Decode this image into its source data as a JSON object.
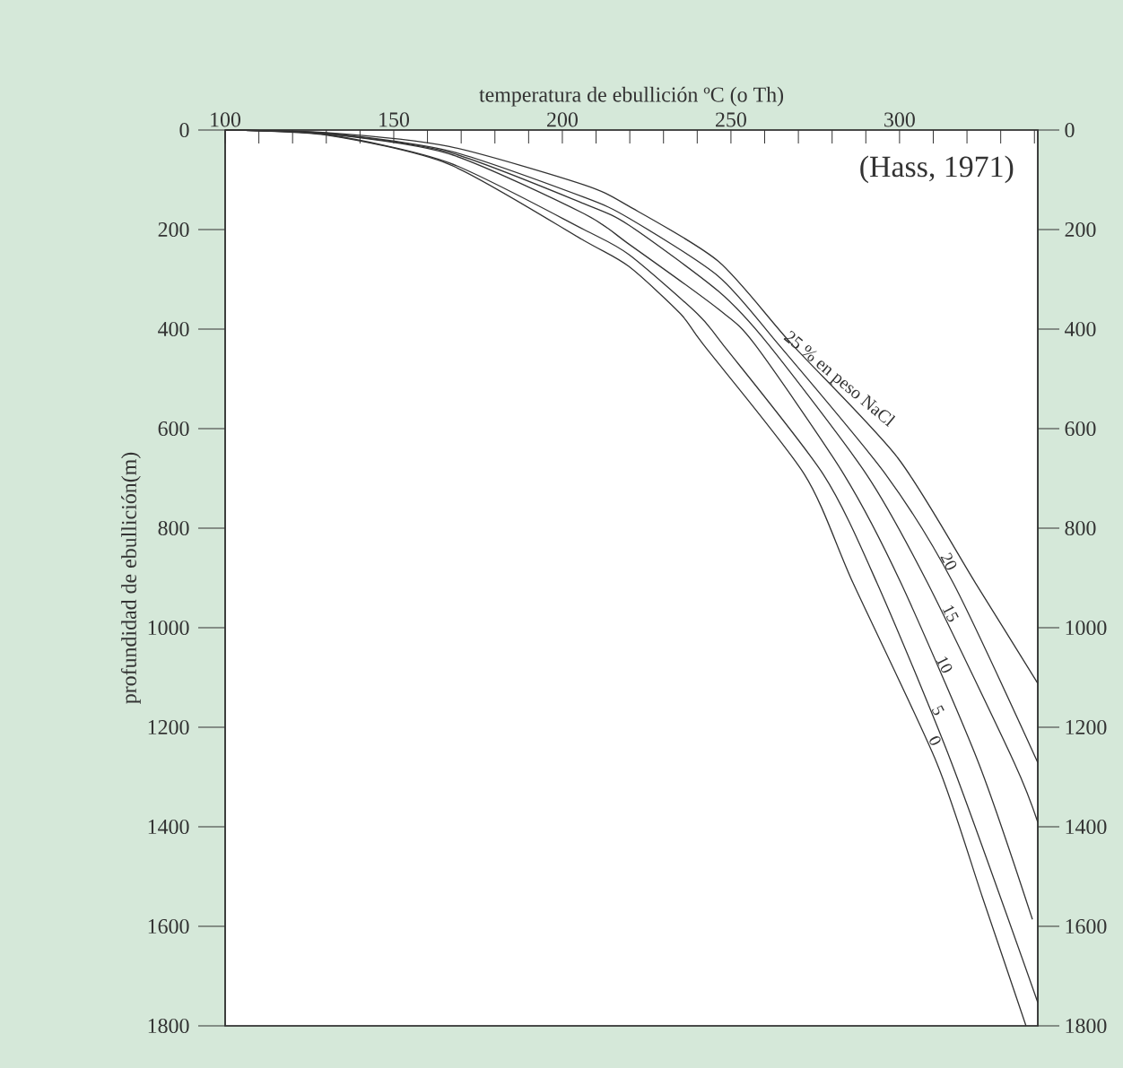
{
  "chart_data": {
    "type": "line",
    "xlabel": "temperatura de ebullición ºC (o Th)",
    "ylabel": "profundidad de ebullición(m)",
    "xlim": [
      100,
      341
    ],
    "ylim": [
      1800,
      0
    ],
    "y2lim": [
      1800,
      0
    ],
    "xticks": [
      100,
      {
        "value": 110,
        "label": null
      },
      {
        "value": 120,
        "label": null
      },
      {
        "value": 130,
        "label": null
      },
      {
        "value": 140,
        "label": null
      },
      150,
      {
        "value": 160,
        "label": null
      },
      {
        "value": 170,
        "label": null
      },
      {
        "value": 180,
        "label": null
      },
      {
        "value": 190,
        "label": null
      },
      200,
      {
        "value": 210,
        "label": null
      },
      {
        "value": 220,
        "label": null
      },
      {
        "value": 230,
        "label": null
      },
      {
        "value": 240,
        "label": null
      },
      250,
      {
        "value": 260,
        "label": null
      },
      {
        "value": 270,
        "label": null
      },
      {
        "value": 280,
        "label": null
      },
      {
        "value": 290,
        "label": null
      },
      300,
      {
        "value": 310,
        "label": null
      },
      {
        "value": 320,
        "label": null
      },
      {
        "value": 330,
        "label": null
      },
      {
        "value": 340,
        "label": null
      }
    ],
    "yticks": [
      0,
      200,
      400,
      600,
      800,
      1000,
      1200,
      1400,
      1600,
      1800
    ],
    "y2ticks": [
      0,
      200,
      400,
      600,
      800,
      1000,
      1200,
      1400,
      1600,
      1800
    ],
    "line_style": "solid",
    "series": [
      {
        "color": "#333333",
        "x": [
          100,
          130,
          166.5,
          206.4,
          219.7,
          246.3,
          268,
          299.5,
          322.5,
          341
        ],
        "values": [
          0,
          5,
          33,
          110,
          153,
          264,
          430,
          659,
          910,
          1112
        ]
      },
      {
        "color": "#333333",
        "x": [
          100,
          130,
          166.5,
          206.4,
          219.7,
          246.3,
          264,
          295.9,
          315.9,
          341
        ],
        "values": [
          0,
          6,
          42,
          135,
          177,
          294,
          430,
          692,
          910,
          1271
        ]
      },
      {
        "color": "#333333",
        "x": [
          100,
          130,
          166.5,
          206.4,
          219.7,
          246.3,
          261,
          290.2,
          308.3,
          334,
          341
        ],
        "values": [
          0,
          7,
          45,
          148,
          191,
          324,
          430,
          692,
          910,
          1271,
          1391
        ]
      },
      {
        "color": "#333333",
        "x": [
          100,
          130,
          166.5,
          206.4,
          219.7,
          246.3,
          257,
          283.5,
          300.4,
          323.4,
          339.4
        ],
        "values": [
          0,
          8,
          48,
          168,
          229,
          360,
          430,
          692,
          910,
          1271,
          1586
        ]
      },
      {
        "color": "#333333",
        "x": [
          100,
          130,
          166.5,
          206.4,
          219.7,
          240,
          247.5,
          277.4,
          293.3,
          315.4,
          341
        ],
        "values": [
          0,
          9,
          66,
          200,
          250,
          369,
          430,
          692,
          910,
          1271,
          1753
        ]
      },
      {
        "color": "#333333",
        "x": [
          100,
          130,
          166.5,
          206.4,
          219.7,
          235,
          241.7,
          271.8,
          286.2,
          311,
          324.5,
          337.5
        ],
        "values": [
          0,
          10,
          69,
          222,
          274,
          369,
          430,
          692,
          910,
          1271,
          1540,
          1800
        ]
      }
    ],
    "annotations": [
      "(Hass, 1971)",
      {
        "text": "25 % en peso NaCl",
        "x": 280,
        "y": 517
      },
      {
        "text": "20",
        "x": 312.6,
        "y": 874
      },
      {
        "text": "15",
        "x": 313.1,
        "y": 978
      },
      {
        "text": "10",
        "x": 311.3,
        "y": 1081
      },
      {
        "text": "5",
        "x": 309.4,
        "y": 1173
      },
      {
        "text": "0",
        "x": 308.5,
        "y": 1234
      }
    ]
  }
}
